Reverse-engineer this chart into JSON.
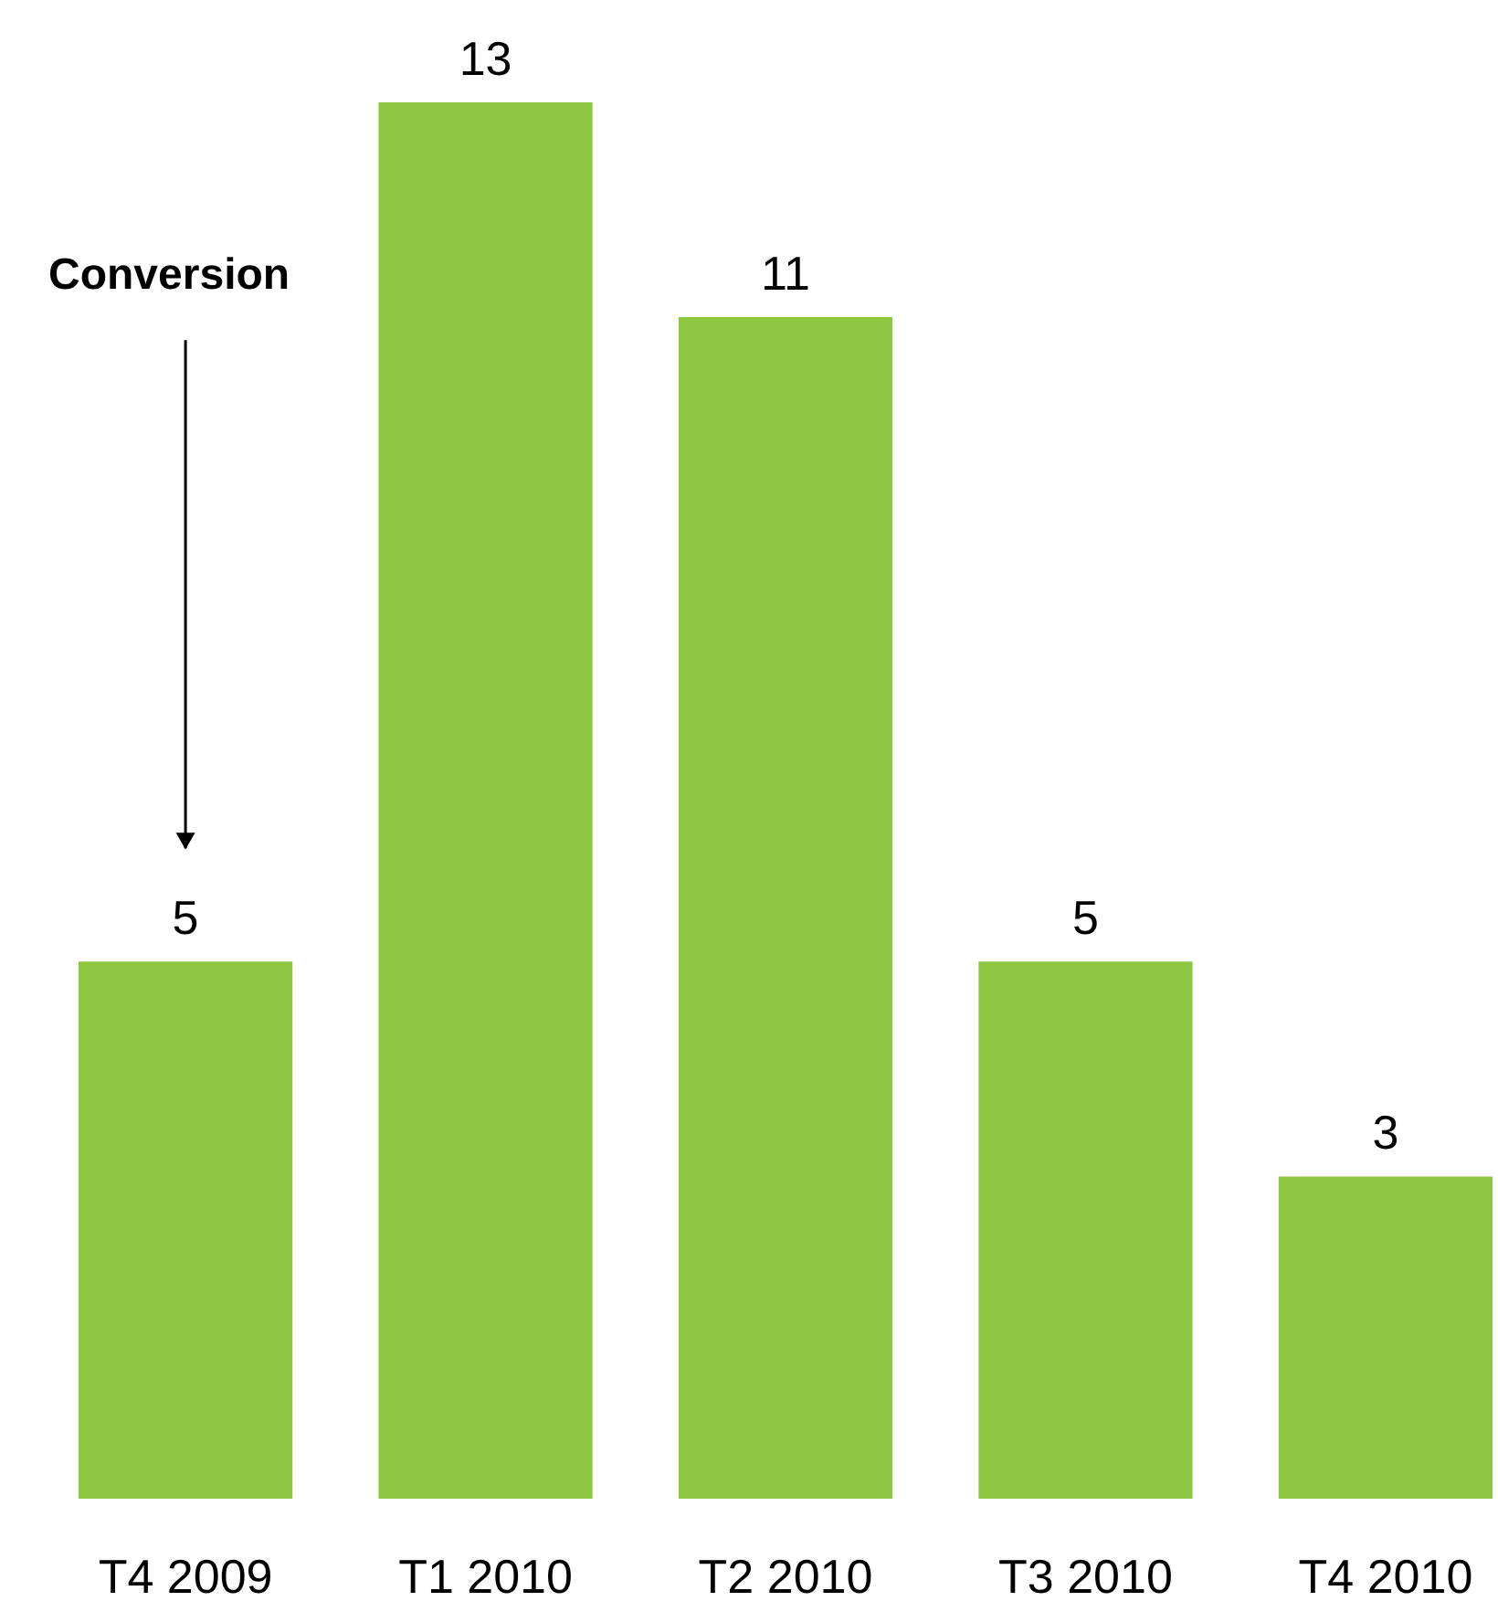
{
  "chart_data": {
    "type": "bar",
    "categories": [
      "T4 2009",
      "T1 2010",
      "T2 2010",
      "T3 2010",
      "T4 2010"
    ],
    "values": [
      5,
      13,
      11,
      5,
      3
    ],
    "color": "#8dc63f",
    "data_labels": true,
    "grid": false,
    "annotations": [
      "Conversion"
    ]
  }
}
